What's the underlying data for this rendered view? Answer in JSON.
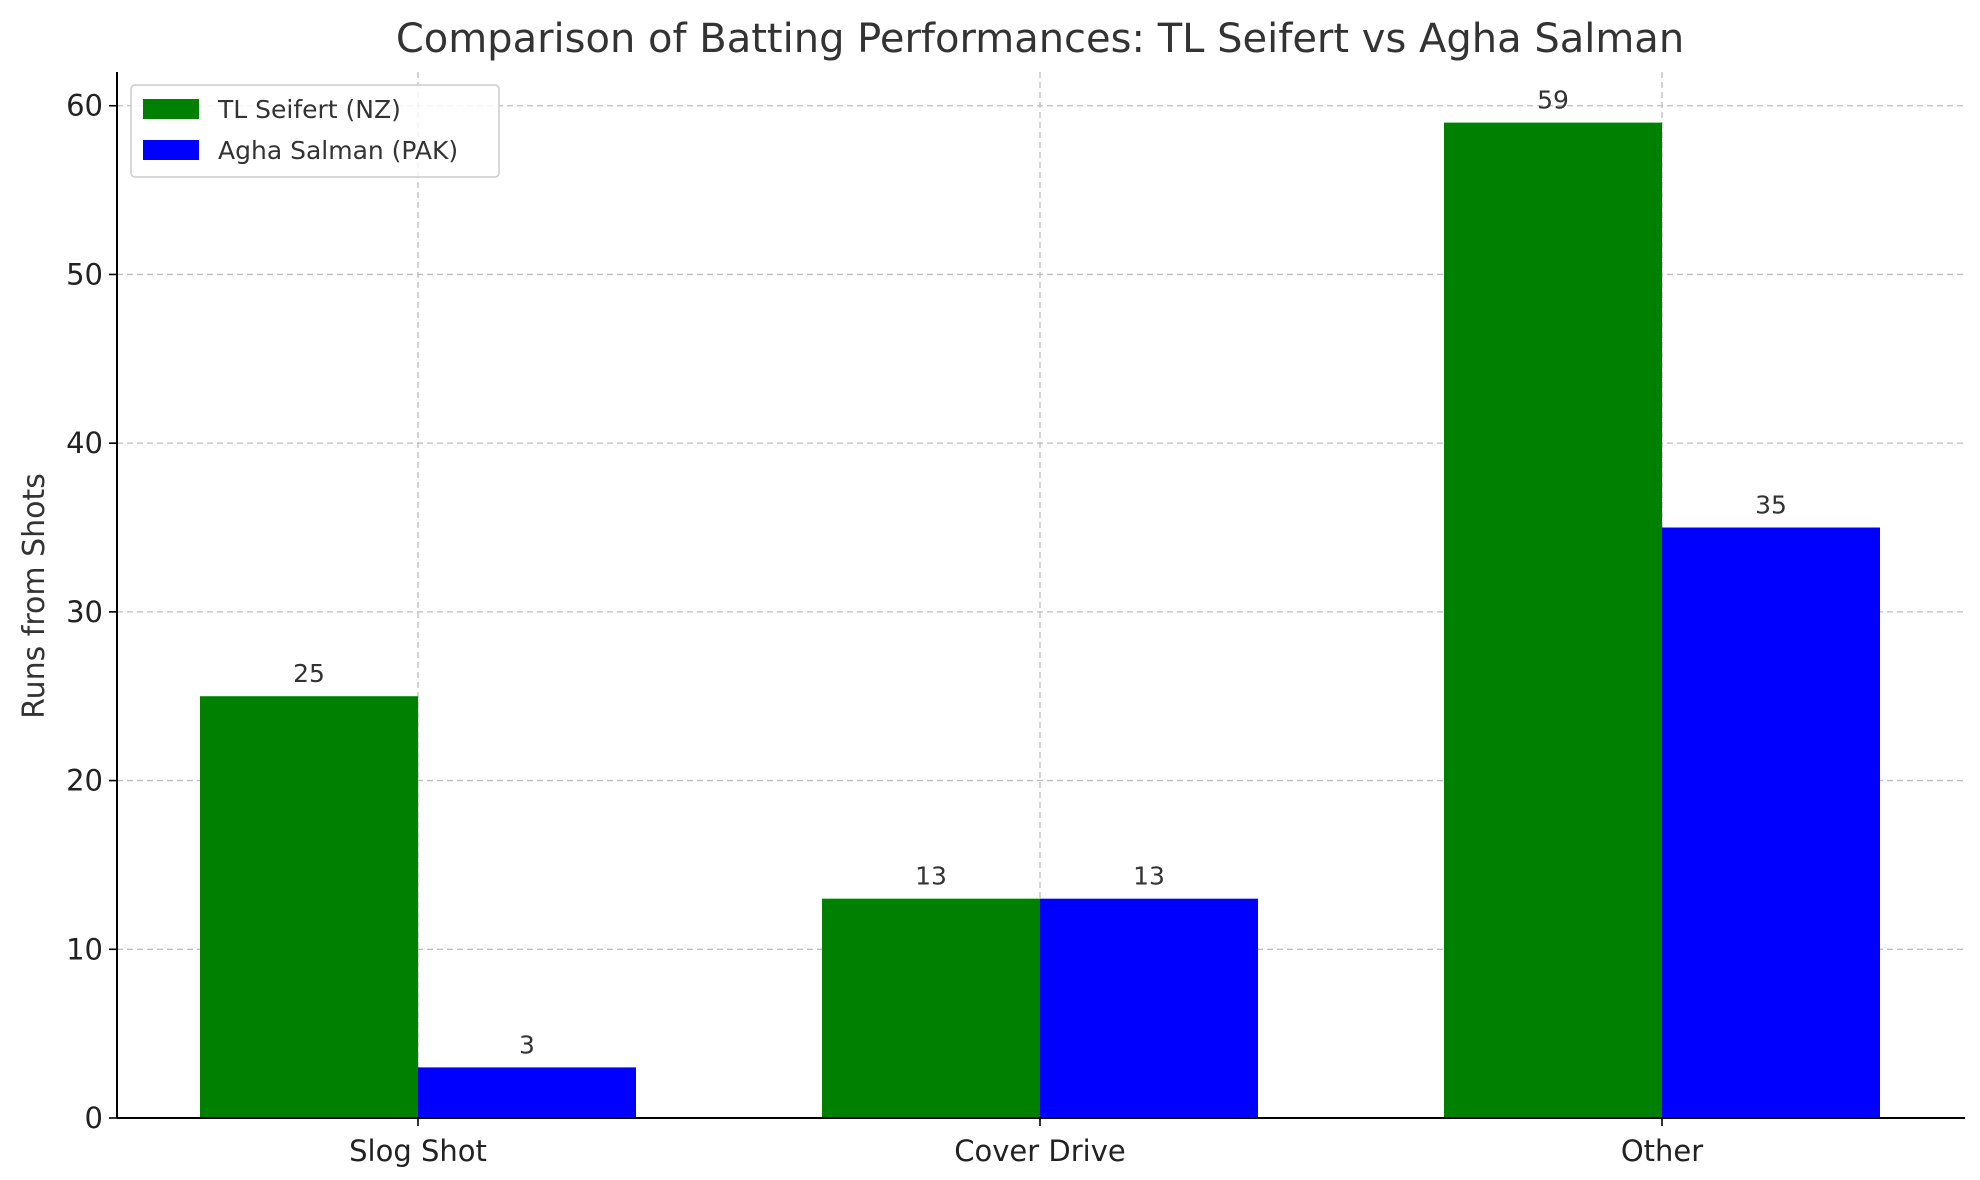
{
  "chart_data": {
    "type": "bar",
    "title": "Comparison of Batting Performances: TL Seifert vs Agha Salman",
    "xlabel": "",
    "ylabel": "Runs from Shots",
    "categories": [
      "Slog Shot",
      "Cover Drive",
      "Other"
    ],
    "series": [
      {
        "name": "TL Seifert (NZ)",
        "color": "#008000",
        "values": [
          25,
          13,
          59
        ]
      },
      {
        "name": "Agha Salman (PAK)",
        "color": "#0000ff",
        "values": [
          3,
          13,
          35
        ]
      }
    ],
    "ylim": [
      0,
      62
    ],
    "yticks": [
      0,
      10,
      20,
      30,
      40,
      50,
      60
    ],
    "grid": true,
    "legend": "top-left",
    "data_labels": true
  }
}
